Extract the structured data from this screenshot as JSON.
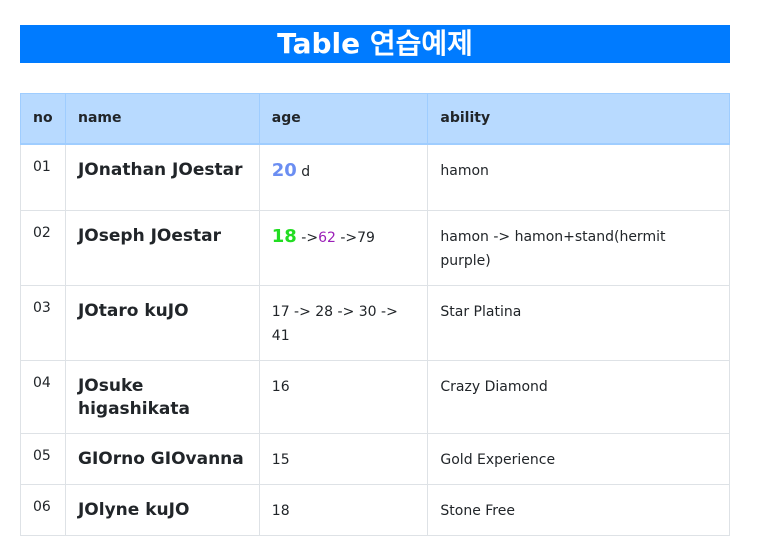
{
  "page": {
    "title": "Table 연습예제"
  },
  "colors": {
    "title_bar_bg": "#007bff",
    "header_bg": "#b8daff",
    "age_blue": "#6b8ef2",
    "age_green": "#22dd22",
    "age_purple": "#9b1fb8"
  },
  "table": {
    "headers": {
      "no": "no",
      "name": "name",
      "age": "age",
      "ability": "ability"
    },
    "rows": [
      {
        "no": "01",
        "name": "JOnathan JOestar",
        "age_primary": "20",
        "age_suffix": " d",
        "ability": "hamon"
      },
      {
        "no": "02",
        "name": "JOseph JOestar",
        "age_primary": "18",
        "age_arrow1": " ->",
        "age_mid": "62",
        "age_arrow2": " ->79",
        "ability": "hamon -> hamon+stand(hermit purple)"
      },
      {
        "no": "03",
        "name": "JOtaro kuJO",
        "age": "17 -> 28 -> 30 -> 41",
        "ability": "Star Platina"
      },
      {
        "no": "04",
        "name": "JOsuke higashikata",
        "age": "16",
        "ability": "Crazy Diamond"
      },
      {
        "no": "05",
        "name": "GIOrno GIOvanna",
        "age": "15",
        "ability": "Gold Experience"
      },
      {
        "no": "06",
        "name": "JOlyne kuJO",
        "age": "18",
        "ability": "Stone Free"
      }
    ]
  }
}
